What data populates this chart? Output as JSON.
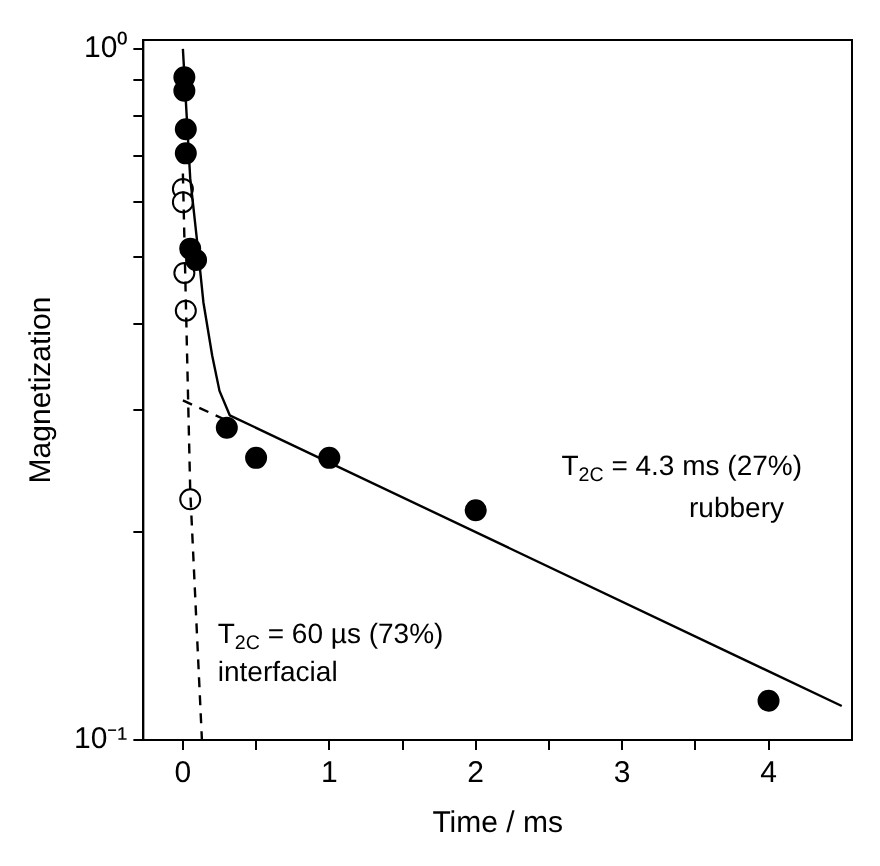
{
  "chart_data": {
    "type": "scatter",
    "xlabel": "Time / ms",
    "ylabel": "Magnetization",
    "log": "y",
    "grid": false,
    "legend": false,
    "xlim": [
      -0.27,
      4.57
    ],
    "xticks": [
      0,
      {
        "value": 0.5,
        "label": null
      },
      1,
      {
        "value": 1.5,
        "label": null
      },
      2,
      {
        "value": 2.5,
        "label": null
      },
      3,
      {
        "value": 3.5,
        "label": null
      },
      4
    ],
    "ylim": [
      0.1,
      1.03
    ],
    "yticks": [
      {
        "value": 0.1,
        "label": "10⁻¹"
      },
      {
        "value": 0.2,
        "label": null
      },
      {
        "value": 0.3,
        "label": null
      },
      {
        "value": 0.4,
        "label": null
      },
      {
        "value": 0.5,
        "label": null
      },
      {
        "value": 0.6,
        "label": null
      },
      {
        "value": 0.7,
        "label": null
      },
      {
        "value": 0.8,
        "label": null
      },
      {
        "value": 0.9,
        "label": null
      },
      {
        "value": 1,
        "label": "10⁰"
      }
    ],
    "series": [
      {
        "type": "line",
        "color": "#000000",
        "line_style": "solid",
        "x": [
          0,
          0.05,
          0.1,
          0.14,
          0.2,
          0.25,
          0.32,
          4.5
        ],
        "values": [
          1.0,
          0.65,
          0.52,
          0.43,
          0.36,
          0.32,
          0.295,
          0.112
        ]
      },
      {
        "type": "line",
        "color": "#000000",
        "line_style": "dashed",
        "x": [
          0,
          0.3
        ],
        "values": [
          0.31,
          0.29
        ]
      },
      {
        "type": "line",
        "color": "#000000",
        "line_style": "dashed",
        "x": [
          0,
          0.05,
          0.13
        ],
        "values": [
          0.66,
          0.23,
          0.1
        ]
      },
      {
        "color": "#000000",
        "marker": "circle",
        "x": [
          0.01,
          0.01,
          0.02,
          0.02,
          0.05,
          0.09,
          0.3,
          0.5,
          1.0,
          2.0,
          4.0
        ],
        "values": [
          0.91,
          0.87,
          0.765,
          0.706,
          0.514,
          0.495,
          0.283,
          0.256,
          0.256,
          0.215,
          0.114
        ]
      },
      {
        "color": "#ffffff",
        "marker": "circle",
        "x": [
          0,
          0,
          0.01,
          0.02,
          0.05
        ],
        "values": [
          0.627,
          0.6,
          0.474,
          0.418,
          0.223
        ]
      }
    ],
    "annotations": [
      "T$_{2C}$ = 4.3 ms (27%)",
      "rubbery",
      "T$_{2C}$ = 60 µs (73%)",
      "interfacial"
    ]
  }
}
